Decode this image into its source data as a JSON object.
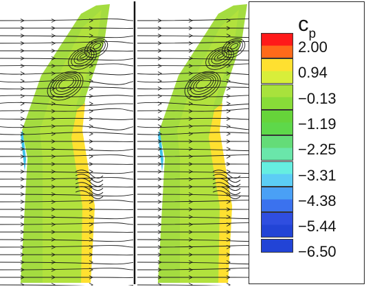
{
  "legend": {
    "title_main": "c",
    "title_sub": "p",
    "levels": [
      {
        "label": "2.00",
        "color": "#ff1a1a"
      },
      {
        "label": "",
        "color": "#ff6a1a"
      },
      {
        "label": "0.94",
        "color": "#ffe030"
      },
      {
        "label": "",
        "color": "#d8ee3a"
      },
      {
        "label": "−0.13",
        "color": "#a8e23c"
      },
      {
        "label": "",
        "color": "#88dc38"
      },
      {
        "label": "−1.19",
        "color": "#66d43a"
      },
      {
        "label": "",
        "color": "#5ed84a"
      },
      {
        "label": "−2.25",
        "color": "#64dc78"
      },
      {
        "label": "",
        "color": "#6ae6aa"
      },
      {
        "label": "−3.31",
        "color": "#66eee0"
      },
      {
        "label": "",
        "color": "#5ccdf5"
      },
      {
        "label": "−4.38",
        "color": "#4aa0f5"
      },
      {
        "label": "",
        "color": "#3b72ee"
      },
      {
        "label": "−5.44",
        "color": "#2f4ee0"
      },
      {
        "label": "−6.50",
        "color": "#2244d6"
      }
    ]
  },
  "colors": {
    "background_field": "#a4dc40",
    "inner_band": "#b8e43c",
    "pressure_side": "#ffe030",
    "suction_edge": "#40c0e8",
    "streamline": "#1a1a1a",
    "divider": "#111111"
  },
  "panels": [
    {
      "name": "left-panel"
    },
    {
      "name": "right-panel"
    }
  ]
}
